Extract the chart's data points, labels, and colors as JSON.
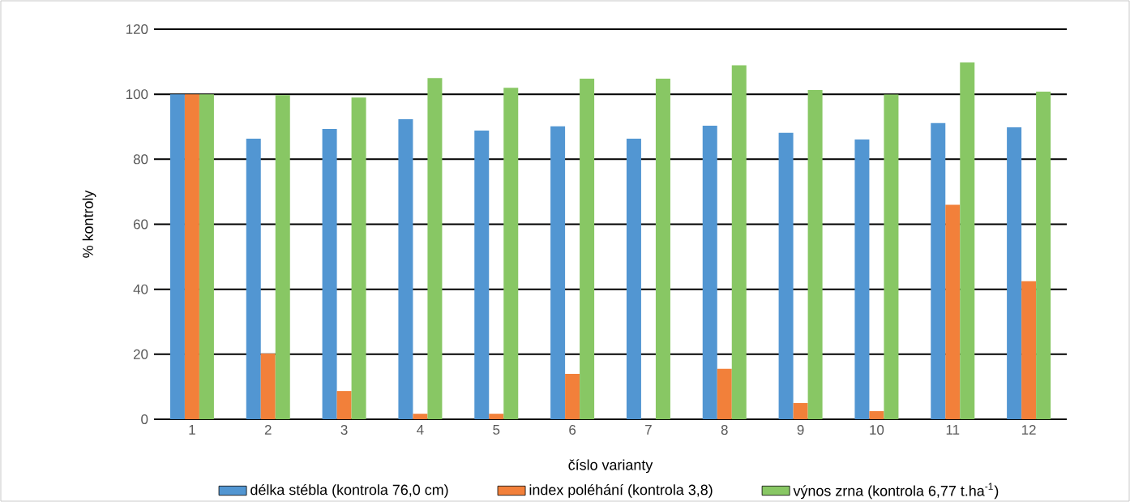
{
  "chart_data": {
    "type": "bar",
    "xlabel": "číslo varianty",
    "ylabel": "% kontroly",
    "categories": [
      "1",
      "2",
      "3",
      "4",
      "5",
      "6",
      "7",
      "8",
      "9",
      "10",
      "11",
      "12"
    ],
    "series": [
      {
        "name": "délka stébla (kontrola 76,0 cm)",
        "color": "#5296d2",
        "values": [
          100,
          86.3,
          89.3,
          92.3,
          88.8,
          90.1,
          86.3,
          90.3,
          88.1,
          86.1,
          91.1,
          89.8
        ]
      },
      {
        "name": "index poléhání (kontrola 3,8)",
        "color": "#f2803a",
        "values": [
          100,
          20.2,
          8.7,
          1.7,
          1.7,
          14,
          0,
          15.5,
          5,
          2.5,
          66,
          42.5
        ]
      },
      {
        "name": "výnos zrna (kontrola 6,77 t.ha$^{-1}$)",
        "color": "#88c764",
        "values": [
          100,
          99.7,
          99,
          105,
          102,
          104.8,
          104.8,
          108.9,
          101.3,
          99.9,
          109.8,
          100.8
        ]
      }
    ],
    "ylim": [
      0,
      120
    ],
    "yticks": [
      0,
      20,
      40,
      60,
      80,
      100,
      120
    ],
    "grid": "y",
    "legend": "bottom"
  }
}
